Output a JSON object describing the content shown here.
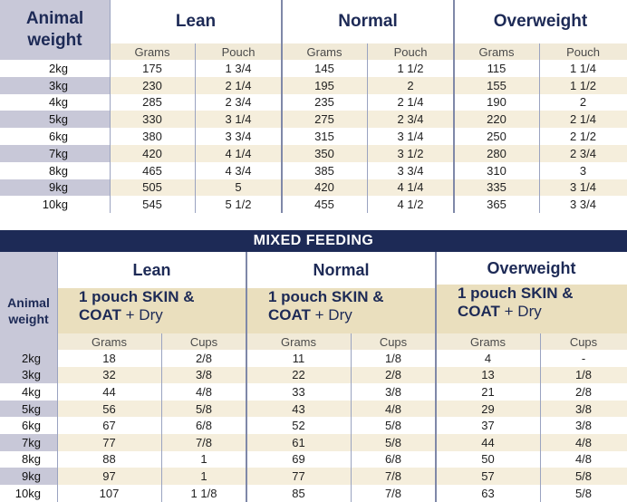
{
  "dry_table": {
    "animal_weight_label": "Animal weight",
    "groups": [
      {
        "label": "Lean",
        "cols": [
          "Grams",
          "Pouch"
        ]
      },
      {
        "label": "Normal",
        "cols": [
          "Grams",
          "Pouch"
        ]
      },
      {
        "label": "Overweight",
        "cols": [
          "Grams",
          "Pouch"
        ]
      }
    ],
    "rows": [
      {
        "weight": "2kg",
        "values": [
          "175",
          "1 3/4",
          "145",
          "1 1/2",
          "115",
          "1 1/4"
        ]
      },
      {
        "weight": "3kg",
        "values": [
          "230",
          "2 1/4",
          "195",
          "2",
          "155",
          "1 1/2"
        ]
      },
      {
        "weight": "4kg",
        "values": [
          "285",
          "2 3/4",
          "235",
          "2 1/4",
          "190",
          "2"
        ]
      },
      {
        "weight": "5kg",
        "values": [
          "330",
          "3 1/4",
          "275",
          "2 3/4",
          "220",
          "2 1/4"
        ]
      },
      {
        "weight": "6kg",
        "values": [
          "380",
          "3 3/4",
          "315",
          "3 1/4",
          "250",
          "2 1/2"
        ]
      },
      {
        "weight": "7kg",
        "values": [
          "420",
          "4 1/4",
          "350",
          "3 1/2",
          "280",
          "2 3/4"
        ]
      },
      {
        "weight": "8kg",
        "values": [
          "465",
          "4 3/4",
          "385",
          "3 3/4",
          "310",
          "3"
        ]
      },
      {
        "weight": "9kg",
        "values": [
          "505",
          "5",
          "420",
          "4 1/4",
          "335",
          "3 1/4"
        ]
      },
      {
        "weight": "10kg",
        "values": [
          "545",
          "5 1/2",
          "455",
          "4 1/2",
          "365",
          "3 3/4"
        ]
      }
    ]
  },
  "mixed_table": {
    "banner": "MIXED FEEDING",
    "animal_weight_label": "Animal weight",
    "groups": [
      {
        "label": "Lean",
        "pouch_line1": "1 pouch SKIN &",
        "pouch_line2": "COAT",
        "pouch_dry": "+ Dry",
        "cols": [
          "Grams",
          "Cups"
        ]
      },
      {
        "label": "Normal",
        "pouch_line1": "1 pouch SKIN &",
        "pouch_line2": "COAT",
        "pouch_dry": "+ Dry",
        "cols": [
          "Grams",
          "Cups"
        ]
      },
      {
        "label": "Overweight",
        "pouch_line1": "1 pouch SKIN &",
        "pouch_line2": "COAT",
        "pouch_dry": "+ Dry",
        "cols": [
          "Grams",
          "Cups"
        ]
      }
    ],
    "rows": [
      {
        "weight": "2kg",
        "values": [
          "18",
          "2/8",
          "11",
          "1/8",
          "4",
          "-"
        ]
      },
      {
        "weight": "3kg",
        "values": [
          "32",
          "3/8",
          "22",
          "2/8",
          "13",
          "1/8"
        ]
      },
      {
        "weight": "4kg",
        "values": [
          "44",
          "4/8",
          "33",
          "3/8",
          "21",
          "2/8"
        ]
      },
      {
        "weight": "5kg",
        "values": [
          "56",
          "5/8",
          "43",
          "4/8",
          "29",
          "3/8"
        ]
      },
      {
        "weight": "6kg",
        "values": [
          "67",
          "6/8",
          "52",
          "5/8",
          "37",
          "3/8"
        ]
      },
      {
        "weight": "7kg",
        "values": [
          "77",
          "7/8",
          "61",
          "5/8",
          "44",
          "4/8"
        ]
      },
      {
        "weight": "8kg",
        "values": [
          "88",
          "1",
          "69",
          "6/8",
          "50",
          "4/8"
        ]
      },
      {
        "weight": "9kg",
        "values": [
          "97",
          "1",
          "77",
          "7/8",
          "57",
          "5/8"
        ]
      },
      {
        "weight": "10kg",
        "values": [
          "107",
          "1 1/8",
          "85",
          "7/8",
          "63",
          "5/8"
        ]
      }
    ]
  }
}
